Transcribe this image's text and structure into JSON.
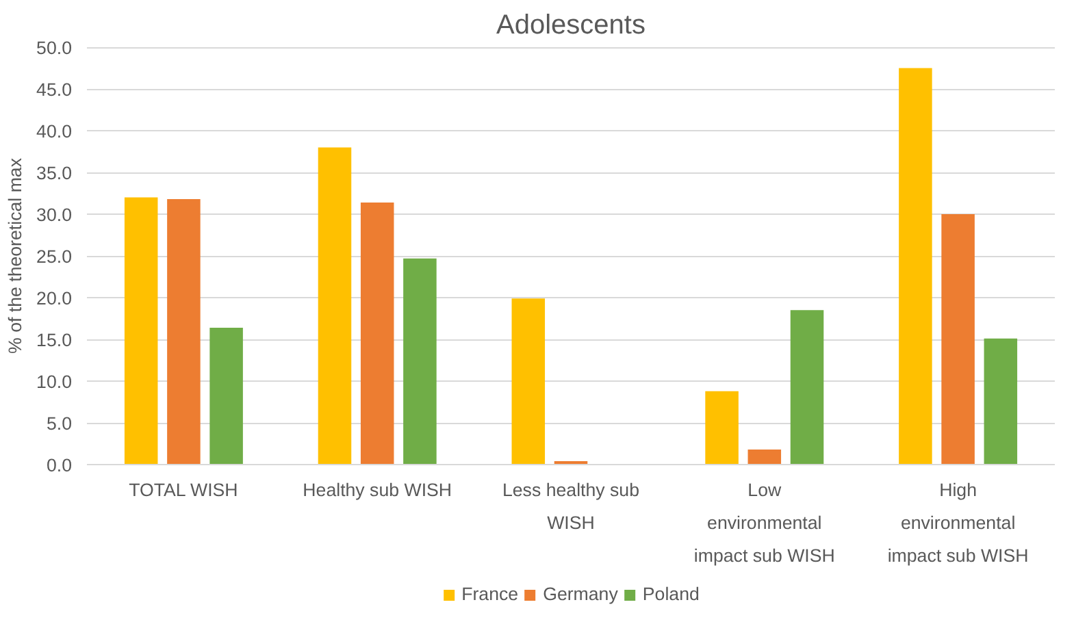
{
  "chart_data": {
    "type": "bar",
    "title": "Adolescents",
    "ylabel": "% of the theoretical max",
    "categories": [
      "TOTAL WISH",
      "Healthy sub WISH",
      "Less healthy sub\nWISH",
      "Low\nenvironmental\nimpact sub WISH",
      "High\nenvironmental\nimpact sub WISH"
    ],
    "series": [
      {
        "name": "France",
        "color": "#ffc000",
        "values": [
          32.0,
          38.0,
          19.9,
          8.8,
          47.5
        ]
      },
      {
        "name": "Germany",
        "color": "#ed7d31",
        "values": [
          31.8,
          31.4,
          0.4,
          1.8,
          30.0
        ]
      },
      {
        "name": "Poland",
        "color": "#70ad47",
        "values": [
          16.4,
          24.7,
          0.0,
          18.5,
          15.1
        ]
      }
    ],
    "ylim": [
      0,
      50
    ],
    "yticks": [
      {
        "value": 0,
        "label": "0.0"
      },
      {
        "value": 5,
        "label": "5.0"
      },
      {
        "value": 10,
        "label": "10.0"
      },
      {
        "value": 15,
        "label": "15.0"
      },
      {
        "value": 20,
        "label": "20.0"
      },
      {
        "value": 25,
        "label": "25.0"
      },
      {
        "value": 30,
        "label": "30.0"
      },
      {
        "value": 35,
        "label": "35.0"
      },
      {
        "value": 40,
        "label": "40.0"
      },
      {
        "value": 45,
        "label": "45.0"
      },
      {
        "value": 50,
        "label": "50.0"
      }
    ],
    "grid": "y",
    "legend": "bottom"
  }
}
